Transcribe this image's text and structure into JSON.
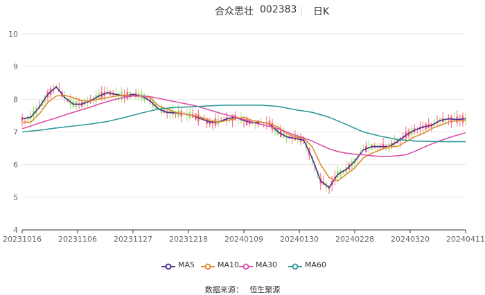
{
  "header": {
    "name": "合众思壮",
    "code": "002383",
    "period": "日K"
  },
  "source": {
    "label": "数据来源：",
    "value": "恒生聚源"
  },
  "colors": {
    "up": "#f5657b",
    "down": "#9ee36b",
    "ma5": "#4b2f93",
    "ma10": "#e0882e",
    "ma30": "#dd4fa5",
    "ma60": "#2e9a99",
    "grid": "#e6e6e6",
    "axis": "#333333",
    "text": "#666666"
  },
  "chart_data": {
    "type": "candlestick",
    "x_ticks": [
      "20231016",
      "20231106",
      "20231127",
      "20231218",
      "20240109",
      "20240130",
      "20240228",
      "20240320",
      "20240411"
    ],
    "y_ticks": [
      4,
      5,
      6,
      7,
      8,
      9,
      10
    ],
    "ylim": [
      4,
      10
    ],
    "grid": true,
    "legend_position": "bottom",
    "series": [
      {
        "name": "MA5",
        "key": "ma5",
        "values": [
          [
            0,
            7.4
          ],
          [
            6,
            7.45
          ],
          [
            12,
            7.75
          ],
          [
            18,
            8.15
          ],
          [
            24,
            8.38
          ],
          [
            30,
            8.05
          ],
          [
            36,
            7.85
          ],
          [
            42,
            7.85
          ],
          [
            48,
            7.95
          ],
          [
            54,
            8.1
          ],
          [
            60,
            8.2
          ],
          [
            66,
            8.15
          ],
          [
            72,
            8.1
          ],
          [
            78,
            8.15
          ],
          [
            84,
            8.1
          ],
          [
            90,
            7.95
          ],
          [
            96,
            7.7
          ],
          [
            102,
            7.6
          ],
          [
            108,
            7.58
          ],
          [
            114,
            7.55
          ],
          [
            120,
            7.5
          ],
          [
            126,
            7.4
          ],
          [
            132,
            7.3
          ],
          [
            138,
            7.3
          ],
          [
            144,
            7.4
          ],
          [
            150,
            7.45
          ],
          [
            156,
            7.35
          ],
          [
            162,
            7.28
          ],
          [
            168,
            7.3
          ],
          [
            174,
            7.25
          ],
          [
            180,
            7.0
          ],
          [
            186,
            6.85
          ],
          [
            192,
            6.8
          ],
          [
            198,
            6.75
          ],
          [
            204,
            6.2
          ],
          [
            210,
            5.5
          ],
          [
            216,
            5.3
          ],
          [
            222,
            5.7
          ],
          [
            228,
            5.85
          ],
          [
            234,
            6.1
          ],
          [
            240,
            6.45
          ],
          [
            246,
            6.55
          ],
          [
            252,
            6.55
          ],
          [
            258,
            6.55
          ],
          [
            264,
            6.7
          ],
          [
            270,
            6.9
          ],
          [
            276,
            7.05
          ],
          [
            282,
            7.15
          ],
          [
            288,
            7.2
          ],
          [
            294,
            7.35
          ],
          [
            300,
            7.4
          ],
          [
            306,
            7.38
          ],
          [
            312,
            7.4
          ]
        ]
      },
      {
        "name": "MA10",
        "key": "ma10",
        "values": [
          [
            0,
            7.3
          ],
          [
            6,
            7.3
          ],
          [
            12,
            7.55
          ],
          [
            18,
            7.9
          ],
          [
            24,
            8.1
          ],
          [
            30,
            8.12
          ],
          [
            36,
            8.05
          ],
          [
            42,
            7.95
          ],
          [
            48,
            7.95
          ],
          [
            54,
            8.0
          ],
          [
            60,
            8.05
          ],
          [
            66,
            8.1
          ],
          [
            72,
            8.12
          ],
          [
            78,
            8.1
          ],
          [
            84,
            8.1
          ],
          [
            90,
            8.05
          ],
          [
            96,
            7.8
          ],
          [
            102,
            7.7
          ],
          [
            108,
            7.6
          ],
          [
            114,
            7.55
          ],
          [
            120,
            7.5
          ],
          [
            126,
            7.45
          ],
          [
            132,
            7.35
          ],
          [
            138,
            7.3
          ],
          [
            144,
            7.35
          ],
          [
            150,
            7.4
          ],
          [
            156,
            7.45
          ],
          [
            162,
            7.35
          ],
          [
            168,
            7.3
          ],
          [
            174,
            7.25
          ],
          [
            180,
            7.15
          ],
          [
            186,
            6.95
          ],
          [
            192,
            6.85
          ],
          [
            198,
            6.8
          ],
          [
            204,
            6.55
          ],
          [
            210,
            6.0
          ],
          [
            216,
            5.6
          ],
          [
            222,
            5.5
          ],
          [
            228,
            5.7
          ],
          [
            234,
            5.9
          ],
          [
            240,
            6.2
          ],
          [
            246,
            6.35
          ],
          [
            252,
            6.45
          ],
          [
            258,
            6.55
          ],
          [
            264,
            6.55
          ],
          [
            270,
            6.7
          ],
          [
            276,
            6.85
          ],
          [
            282,
            6.95
          ],
          [
            288,
            7.1
          ],
          [
            294,
            7.2
          ],
          [
            300,
            7.3
          ],
          [
            306,
            7.35
          ],
          [
            312,
            7.35
          ]
        ]
      },
      {
        "name": "MA30",
        "key": "ma30",
        "values": [
          [
            0,
            7.1
          ],
          [
            6,
            7.18
          ],
          [
            12,
            7.27
          ],
          [
            18,
            7.35
          ],
          [
            24,
            7.43
          ],
          [
            30,
            7.52
          ],
          [
            36,
            7.6
          ],
          [
            42,
            7.68
          ],
          [
            48,
            7.76
          ],
          [
            54,
            7.85
          ],
          [
            60,
            7.93
          ],
          [
            66,
            8.0
          ],
          [
            72,
            8.06
          ],
          [
            78,
            8.1
          ],
          [
            84,
            8.1
          ],
          [
            90,
            8.08
          ],
          [
            96,
            8.03
          ],
          [
            102,
            7.97
          ],
          [
            108,
            7.92
          ],
          [
            114,
            7.87
          ],
          [
            120,
            7.82
          ],
          [
            126,
            7.75
          ],
          [
            132,
            7.67
          ],
          [
            138,
            7.59
          ],
          [
            144,
            7.52
          ],
          [
            150,
            7.45
          ],
          [
            156,
            7.38
          ],
          [
            162,
            7.3
          ],
          [
            168,
            7.23
          ],
          [
            174,
            7.17
          ],
          [
            180,
            7.1
          ],
          [
            186,
            7.0
          ],
          [
            192,
            6.9
          ],
          [
            198,
            6.82
          ],
          [
            204,
            6.72
          ],
          [
            210,
            6.6
          ],
          [
            216,
            6.48
          ],
          [
            222,
            6.4
          ],
          [
            228,
            6.35
          ],
          [
            234,
            6.32
          ],
          [
            240,
            6.3
          ],
          [
            246,
            6.27
          ],
          [
            252,
            6.25
          ],
          [
            258,
            6.25
          ],
          [
            264,
            6.27
          ],
          [
            270,
            6.3
          ],
          [
            276,
            6.4
          ],
          [
            282,
            6.52
          ],
          [
            288,
            6.63
          ],
          [
            294,
            6.73
          ],
          [
            300,
            6.82
          ],
          [
            306,
            6.9
          ],
          [
            312,
            6.97
          ]
        ]
      },
      {
        "name": "MA60",
        "key": "ma60",
        "values": [
          [
            0,
            7.0
          ],
          [
            12,
            7.05
          ],
          [
            24,
            7.12
          ],
          [
            36,
            7.18
          ],
          [
            48,
            7.24
          ],
          [
            60,
            7.32
          ],
          [
            72,
            7.44
          ],
          [
            84,
            7.58
          ],
          [
            96,
            7.7
          ],
          [
            108,
            7.75
          ],
          [
            120,
            7.77
          ],
          [
            132,
            7.8
          ],
          [
            144,
            7.82
          ],
          [
            156,
            7.82
          ],
          [
            168,
            7.82
          ],
          [
            180,
            7.78
          ],
          [
            192,
            7.68
          ],
          [
            204,
            7.6
          ],
          [
            216,
            7.45
          ],
          [
            228,
            7.23
          ],
          [
            240,
            7.0
          ],
          [
            252,
            6.87
          ],
          [
            264,
            6.77
          ],
          [
            276,
            6.72
          ],
          [
            288,
            6.71
          ],
          [
            300,
            6.7
          ],
          [
            312,
            6.7
          ]
        ]
      }
    ]
  }
}
